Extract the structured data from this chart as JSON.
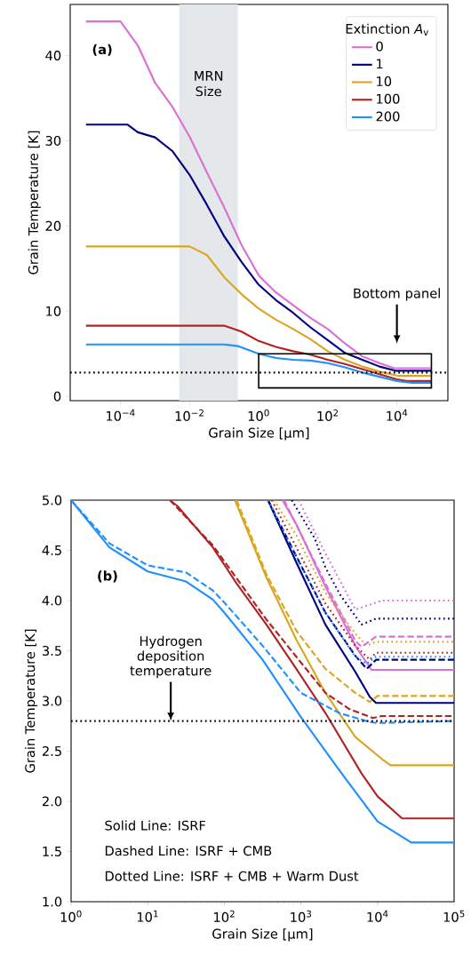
{
  "chart_data": [
    {
      "type": "line",
      "xlabel": "Grain Size [μm]",
      "ylabel": "Grain Temperature [K]",
      "legend_title": "Extinction *A*$_{v}$",
      "legend": "top right",
      "log": "x",
      "xlim": [
        3.5e-06,
        300000
      ],
      "ylim": [
        -0.5,
        46
      ],
      "xticks": [
        {
          "value": 0.0001,
          "label": "10$^{−4}$"
        },
        {
          "value": 0.01,
          "label": "10$^{−2}$"
        },
        {
          "value": 1,
          "label": "10$^{0}$"
        },
        {
          "value": 100,
          "label": "10$^{2}$"
        },
        {
          "value": 10000,
          "label": "10$^{4}$"
        }
      ],
      "yticks": [
        0,
        10,
        20,
        30,
        40
      ],
      "series": [
        {
          "name": "0",
          "color": "#da70d6",
          "line_style": "solid",
          "x": [
            1e-05,
            0.0001,
            0.000316,
            0.001,
            0.00316,
            0.01,
            0.0316,
            0.1,
            0.316,
            1,
            3.16,
            10,
            31.6,
            100,
            316,
            1000,
            3162,
            8318,
            31623,
            100000
          ],
          "values": [
            44.0,
            44.0,
            41.2,
            36.8,
            34.0,
            30.5,
            26.3,
            22.2,
            17.8,
            14.2,
            12.2,
            10.7,
            9.2,
            7.9,
            6.2,
            4.7,
            3.9,
            3.3,
            3.3,
            3.3
          ]
        },
        {
          "name": "1",
          "color": "#000080",
          "line_style": "solid",
          "x": [
            1e-05,
            0.000158,
            0.000316,
            0.001,
            0.00316,
            0.01,
            0.0316,
            0.1,
            0.316,
            1,
            3.16,
            10,
            31.6,
            100,
            316,
            1000,
            3162,
            9550,
            100000
          ],
          "values": [
            31.9,
            31.9,
            31.0,
            30.4,
            28.8,
            26.0,
            22.5,
            18.8,
            15.8,
            13.1,
            11.3,
            9.8,
            8.1,
            6.6,
            5.1,
            4.3,
            3.5,
            3.0,
            3.0
          ]
        },
        {
          "name": "10",
          "color": "#daa520",
          "line_style": "solid",
          "x": [
            1e-05,
            0.01,
            0.0316,
            0.1,
            0.316,
            1,
            3.16,
            10,
            31.6,
            100,
            316,
            1000,
            3162,
            11482,
            14791,
            100000
          ],
          "values": [
            17.6,
            17.6,
            16.6,
            14.0,
            12.0,
            10.3,
            9.0,
            7.9,
            6.7,
            5.3,
            4.3,
            3.5,
            2.9,
            2.4,
            2.4,
            2.4
          ]
        },
        {
          "name": "100",
          "color": "#b22222",
          "line_style": "solid",
          "x": [
            1e-05,
            0.1,
            0.316,
            1,
            3.16,
            10,
            31.6,
            100,
            316,
            1000,
            3162,
            10000,
            20893,
            100000
          ],
          "values": [
            8.3,
            8.3,
            7.6,
            6.5,
            5.8,
            5.3,
            4.9,
            4.3,
            3.8,
            3.2,
            2.6,
            2.0,
            1.8,
            1.8
          ]
        },
        {
          "name": "200",
          "color": "#1e90ff",
          "line_style": "solid",
          "x": [
            1e-05,
            0.1,
            0.251,
            1,
            3.16,
            10,
            31.6,
            100,
            316,
            1000,
            3162,
            10000,
            27542,
            100000
          ],
          "values": [
            6.1,
            6.1,
            5.9,
            5.0,
            4.5,
            4.3,
            4.2,
            3.9,
            3.4,
            2.8,
            2.3,
            1.8,
            1.6,
            1.6
          ]
        }
      ],
      "ref_lines": [
        {
          "axis": "y",
          "value": 2.8,
          "color": "#000000",
          "line_style": "dotted"
        }
      ],
      "bands": [
        {
          "axis": "x",
          "from": 0.005,
          "to": 0.25,
          "label": "MRN Size",
          "color": "#e5e8eb"
        }
      ],
      "annotations": [
        "(a)",
        "Bottom panel"
      ]
    },
    {
      "type": "line",
      "xlabel": "Grain Size [μm]",
      "ylabel": "Grain Temperature [K]",
      "log": "x",
      "xlim": [
        1,
        100000
      ],
      "ylim": [
        1,
        5
      ],
      "xticks": [
        {
          "value": 1,
          "label": "10$^{0}$"
        },
        {
          "value": 10,
          "label": "10$^{1}$"
        },
        {
          "value": 100,
          "label": "10$^{2}$"
        },
        {
          "value": 1000,
          "label": "10$^{3}$"
        },
        {
          "value": 10000,
          "label": "10$^{4}$"
        },
        {
          "value": 100000,
          "label": "10$^{5}$"
        }
      ],
      "yticks": [
        {
          "value": 1,
          "label": "1.0"
        },
        {
          "value": 1.5,
          "label": "1.5"
        },
        {
          "value": 2,
          "label": "2.0"
        },
        {
          "value": 2.5,
          "label": "2.5"
        },
        {
          "value": 3,
          "label": "3.0"
        },
        {
          "value": 3.5,
          "label": "3.5"
        },
        {
          "value": 4,
          "label": "4.0"
        },
        {
          "value": 4.5,
          "label": "4.5"
        },
        {
          "value": 5,
          "label": "5.0"
        }
      ],
      "series": [
        {
          "color": "#da70d6",
          "line_style": "solid",
          "x": [
            575,
            871,
            2089,
            5129,
            8318,
            100000
          ],
          "values": [
            5.0,
            4.76,
            4.14,
            3.55,
            3.31,
            3.31
          ]
        },
        {
          "color": "#000080",
          "line_style": "solid",
          "x": [
            372,
            871,
            2089,
            5129,
            7943,
            9550,
            100000
          ],
          "values": [
            5.0,
            4.38,
            3.76,
            3.29,
            3.04,
            2.98,
            2.98
          ]
        },
        {
          "color": "#daa520",
          "line_style": "solid",
          "x": [
            138,
            355,
            871,
            2089,
            5129,
            11482,
            14791,
            100000
          ],
          "values": [
            5.0,
            4.23,
            3.61,
            3.08,
            2.64,
            2.42,
            2.36,
            2.36
          ]
        },
        {
          "color": "#b22222",
          "line_style": "solid",
          "x": [
            19.5,
            24.5,
            70.8,
            145,
            355,
            871,
            2089,
            6166,
            10000,
            20893,
            100000
          ],
          "values": [
            5.0,
            4.94,
            4.53,
            4.17,
            3.76,
            3.32,
            2.88,
            2.28,
            2.05,
            1.83,
            1.83
          ]
        },
        {
          "color": "#1e90ff",
          "line_style": "solid",
          "x": [
            1,
            3.16,
            10,
            31.6,
            70.8,
            100,
            316,
            1000,
            3162,
            10000,
            27542,
            100000
          ],
          "values": [
            5.0,
            4.53,
            4.29,
            4.19,
            4.01,
            3.88,
            3.41,
            2.84,
            2.31,
            1.8,
            1.59,
            1.59
          ]
        },
        {
          "color": "#da70d6",
          "line_style": "dashed",
          "x": [
            603,
            2089,
            5129,
            6166,
            9550,
            100000
          ],
          "values": [
            5.0,
            4.17,
            3.6,
            3.54,
            3.64,
            3.64
          ]
        },
        {
          "color": "#000080",
          "line_style": "dashed",
          "x": [
            372,
            871,
            2089,
            5129,
            7244,
            9550,
            100000
          ],
          "values": [
            5.0,
            4.44,
            3.88,
            3.45,
            3.32,
            3.41,
            3.41
          ]
        },
        {
          "color": "#daa520",
          "line_style": "dashed",
          "x": [
            145,
            355,
            871,
            2089,
            5129,
            7943,
            10000,
            100000
          ],
          "values": [
            5.0,
            4.26,
            3.7,
            3.32,
            3.08,
            2.99,
            3.05,
            3.05
          ]
        },
        {
          "color": "#b22222",
          "line_style": "dashed",
          "x": [
            19.5,
            70.8,
            355,
            871,
            2089,
            4266,
            8710,
            11482,
            100000
          ],
          "values": [
            5.0,
            4.55,
            3.81,
            3.44,
            3.08,
            2.92,
            2.83,
            2.85,
            2.85
          ]
        },
        {
          "color": "#1e90ff",
          "line_style": "dashed",
          "x": [
            1,
            3.16,
            10,
            31.6,
            70.8,
            100,
            316,
            1000,
            3162,
            7943,
            10000,
            100000
          ],
          "values": [
            5.0,
            4.57,
            4.35,
            4.28,
            4.1,
            3.98,
            3.55,
            3.08,
            2.88,
            2.79,
            2.78,
            2.8
          ]
        },
        {
          "color": "#da70d6",
          "line_style": "dotted",
          "x": [
            933,
            2089,
            5129,
            11482,
            100000
          ],
          "values": [
            5.0,
            4.47,
            3.91,
            4.0,
            4.0
          ]
        },
        {
          "color": "#000080",
          "line_style": "dotted",
          "x": [
            759,
            1514,
            2089,
            3236,
            6166,
            9550,
            100000
          ],
          "values": [
            5.0,
            4.62,
            4.33,
            4.06,
            3.76,
            3.82,
            3.82
          ]
        },
        {
          "color": "#daa520",
          "line_style": "dotted",
          "x": [
            447,
            871,
            2089,
            5129,
            7244,
            9550,
            100000
          ],
          "values": [
            5.0,
            4.65,
            4.08,
            3.67,
            3.55,
            3.59,
            3.59
          ]
        },
        {
          "color": "#b22222",
          "line_style": "dotted",
          "x": [
            417,
            871,
            2089,
            5129,
            7943,
            9550,
            100000
          ],
          "values": [
            5.0,
            4.53,
            3.97,
            3.55,
            3.41,
            3.48,
            3.48
          ]
        },
        {
          "color": "#1e90ff",
          "line_style": "dotted",
          "x": [
            372,
            871,
            2089,
            5129,
            7244,
            9550,
            100000
          ],
          "values": [
            5.0,
            4.44,
            3.88,
            3.44,
            3.37,
            3.44,
            3.44
          ]
        }
      ],
      "ref_lines": [
        {
          "axis": "y",
          "value": 2.8,
          "color": "#000000",
          "line_style": "dotted"
        }
      ],
      "annotations": [
        "(b)",
        {
          "text": "Hydrogen deposition temperature",
          "x": 20,
          "y": 2.8
        },
        "Solid Line: ISRF",
        "Dashed Line: ISRF + CMB",
        "Dotted Line: ISRF + CMB + Warm Dust"
      ]
    }
  ]
}
